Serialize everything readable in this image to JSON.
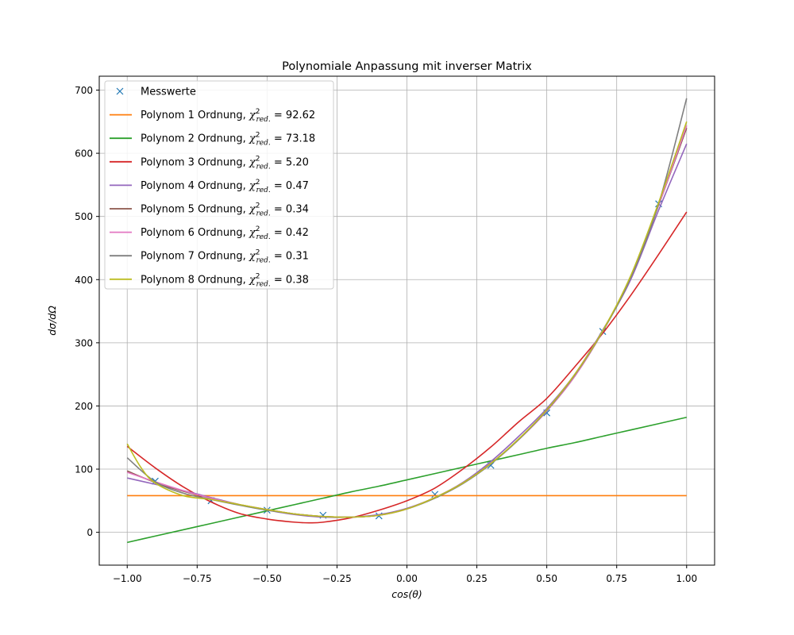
{
  "chart_data": {
    "type": "line",
    "title": "Polynomiale Anpassung mit inverser Matrix",
    "xlabel": "cos(θ)",
    "ylabel": "dσ/dΩ",
    "xlim": [
      -1.1,
      1.1
    ],
    "ylim": [
      -52,
      722
    ],
    "xticks": [
      -1.0,
      -0.75,
      -0.5,
      -0.25,
      0.0,
      0.25,
      0.5,
      0.75,
      1.0
    ],
    "xtick_labels": [
      "−1.00",
      "−0.75",
      "−0.50",
      "−0.25",
      "0.00",
      "0.25",
      "0.50",
      "0.75",
      "1.00"
    ],
    "yticks": [
      0,
      100,
      200,
      300,
      400,
      500,
      600,
      700
    ],
    "ytick_labels": [
      "0",
      "100",
      "200",
      "300",
      "400",
      "500",
      "600",
      "700"
    ],
    "grid": true,
    "legend_position": "top-left",
    "measurements": {
      "name": "Messwerte",
      "color": "#1f77b4",
      "marker": "x",
      "x": [
        -0.9,
        -0.7,
        -0.5,
        -0.3,
        -0.1,
        0.1,
        0.3,
        0.5,
        0.7,
        0.9
      ],
      "y": [
        81,
        50,
        35,
        27,
        26,
        60,
        106,
        189,
        318,
        520
      ]
    },
    "series": [
      {
        "name": "Polynom 1 Ordnung",
        "chi": "92.62",
        "color": "#ff7f0e",
        "x": [
          -1.0,
          -0.9,
          -0.8,
          -0.7,
          -0.6,
          -0.5,
          -0.4,
          -0.3,
          -0.2,
          -0.1,
          0.0,
          0.1,
          0.2,
          0.3,
          0.4,
          0.5,
          0.6,
          0.7,
          0.8,
          0.9,
          1.0
        ],
        "y": [
          58,
          58,
          58,
          58,
          58,
          58,
          58,
          58,
          58,
          58,
          58,
          58,
          58,
          58,
          58,
          58,
          58,
          58,
          58,
          58,
          58
        ]
      },
      {
        "name": "Polynom 2 Ordnung",
        "chi": "73.18",
        "color": "#2ca02c",
        "x": [
          -1.0,
          -0.9,
          -0.8,
          -0.7,
          -0.6,
          -0.5,
          -0.4,
          -0.3,
          -0.2,
          -0.1,
          0.0,
          0.1,
          0.2,
          0.3,
          0.4,
          0.5,
          0.6,
          0.7,
          0.8,
          0.9,
          1.0
        ],
        "y": [
          -16,
          -6,
          4,
          14,
          24,
          34,
          44,
          54,
          64,
          73,
          83,
          93,
          103,
          113,
          123,
          133,
          142,
          152,
          162,
          172,
          182
        ]
      },
      {
        "name": "Polynom 3 Ordnung",
        "chi": "5.20",
        "color": "#d62728",
        "x": [
          -1.0,
          -0.9,
          -0.8,
          -0.7,
          -0.6,
          -0.5,
          -0.4,
          -0.35,
          -0.3,
          -0.2,
          -0.1,
          0.0,
          0.1,
          0.2,
          0.3,
          0.4,
          0.5,
          0.6,
          0.7,
          0.8,
          0.9,
          1.0
        ],
        "y": [
          136,
          102,
          72,
          48,
          30,
          21,
          16,
          15,
          16,
          23,
          35,
          50,
          70,
          100,
          135,
          175,
          212,
          262,
          315,
          375,
          440,
          507
        ]
      },
      {
        "name": "Polynom 4 Ordnung",
        "chi": "0.47",
        "color": "#9467bd",
        "x": [
          -1.0,
          -0.9,
          -0.8,
          -0.7,
          -0.6,
          -0.5,
          -0.4,
          -0.3,
          -0.2,
          -0.1,
          0.0,
          0.1,
          0.2,
          0.3,
          0.4,
          0.5,
          0.6,
          0.7,
          0.8,
          0.9,
          1.0
        ],
        "y": [
          86,
          76,
          66,
          55,
          44,
          35,
          28,
          24,
          24,
          28,
          38,
          55,
          79,
          112,
          152,
          196,
          250,
          320,
          400,
          510,
          615
        ]
      },
      {
        "name": "Polynom 5 Ordnung",
        "chi": "0.34",
        "color": "#8c564b",
        "x": [
          -1.0,
          -0.9,
          -0.8,
          -0.7,
          -0.6,
          -0.5,
          -0.4,
          -0.3,
          -0.2,
          -0.1,
          0.0,
          0.1,
          0.2,
          0.3,
          0.4,
          0.5,
          0.6,
          0.7,
          0.8,
          0.9,
          1.0
        ],
        "y": [
          97,
          79,
          65,
          54,
          44,
          36,
          29,
          25,
          24,
          27,
          37,
          55,
          78,
          109,
          147,
          192,
          247,
          318,
          405,
          518,
          640
        ]
      },
      {
        "name": "Polynom 6 Ordnung",
        "chi": "0.42",
        "color": "#e377c2",
        "x": [
          -1.0,
          -0.9,
          -0.8,
          -0.7,
          -0.6,
          -0.5,
          -0.4,
          -0.3,
          -0.2,
          -0.1,
          0.0,
          0.1,
          0.2,
          0.3,
          0.4,
          0.5,
          0.6,
          0.7,
          0.8,
          0.9,
          1.0
        ],
        "y": [
          95,
          80,
          66,
          54,
          44,
          36,
          29,
          25,
          24,
          27,
          37,
          55,
          78,
          109,
          147,
          192,
          247,
          318,
          405,
          518,
          644
        ]
      },
      {
        "name": "Polynom 7 Ordnung",
        "chi": "0.31",
        "color": "#7f7f7f",
        "x": [
          -1.0,
          -0.9,
          -0.8,
          -0.7,
          -0.6,
          -0.5,
          -0.4,
          -0.3,
          -0.2,
          -0.1,
          0.0,
          0.1,
          0.2,
          0.3,
          0.4,
          0.5,
          0.6,
          0.7,
          0.8,
          0.9,
          1.0
        ],
        "y": [
          118,
          80,
          62,
          52,
          43,
          35,
          29,
          25,
          24,
          27,
          37,
          54,
          77,
          108,
          147,
          193,
          249,
          318,
          403,
          520,
          687
        ]
      },
      {
        "name": "Polynom 8 Ordnung",
        "chi": "0.38",
        "color": "#bcbd22",
        "x": [
          -1.0,
          -0.95,
          -0.9,
          -0.8,
          -0.7,
          -0.6,
          -0.5,
          -0.4,
          -0.3,
          -0.2,
          -0.1,
          0.0,
          0.1,
          0.2,
          0.3,
          0.4,
          0.5,
          0.6,
          0.7,
          0.8,
          0.9,
          1.0
        ],
        "y": [
          140,
          102,
          78,
          58,
          52,
          44,
          36,
          29,
          25,
          24,
          27,
          37,
          55,
          78,
          109,
          148,
          194,
          250,
          319,
          406,
          522,
          650
        ]
      }
    ]
  }
}
